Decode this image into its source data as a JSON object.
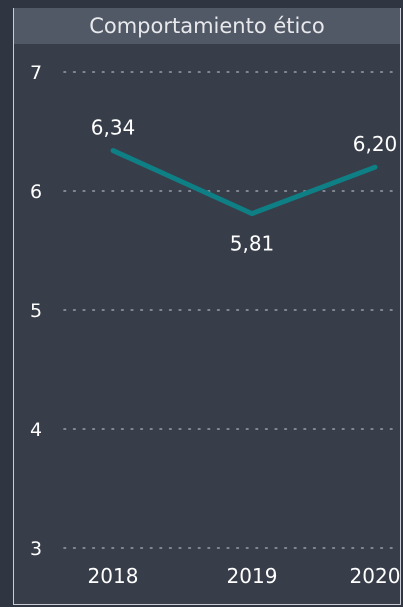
{
  "chart_data": {
    "type": "line",
    "title": "Comportamiento ético",
    "categories": [
      "2018",
      "2019",
      "2020"
    ],
    "series": [
      {
        "values": [
          6.34,
          5.81,
          6.2
        ],
        "labels": [
          "6,34",
          "5,81",
          "6,20"
        ]
      }
    ],
    "ylim": [
      3,
      7
    ],
    "yticks": [
      "3",
      "4",
      "5",
      "6",
      "7"
    ],
    "grid": true,
    "line_color": "#0e7f85"
  }
}
